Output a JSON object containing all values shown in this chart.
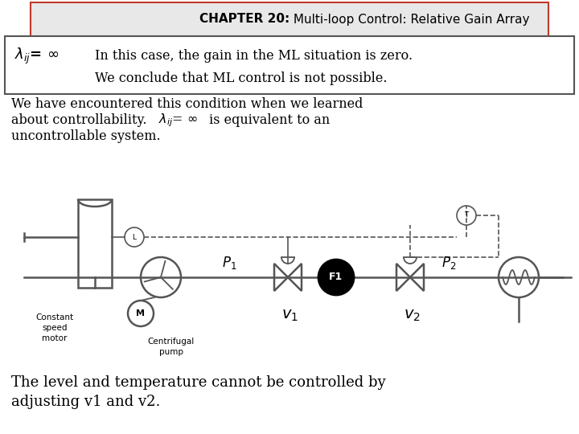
{
  "bg_color": "#ffffff",
  "title_text_bold": "CHAPTER 20:",
  "title_text_normal": " Multi-loop Control: Relative Gain Array",
  "title_color": "#c0392b",
  "title_bg": "#e8e8e8",
  "box_border_color": "#555555",
  "text_color": "#000000",
  "para1_line1": "We have encountered this condition when we learned",
  "para1_line3": "uncontrollable system.",
  "bottom_line1": "The level and temperature cannot be controlled by",
  "bottom_line2": "adjusting v1 and v2."
}
